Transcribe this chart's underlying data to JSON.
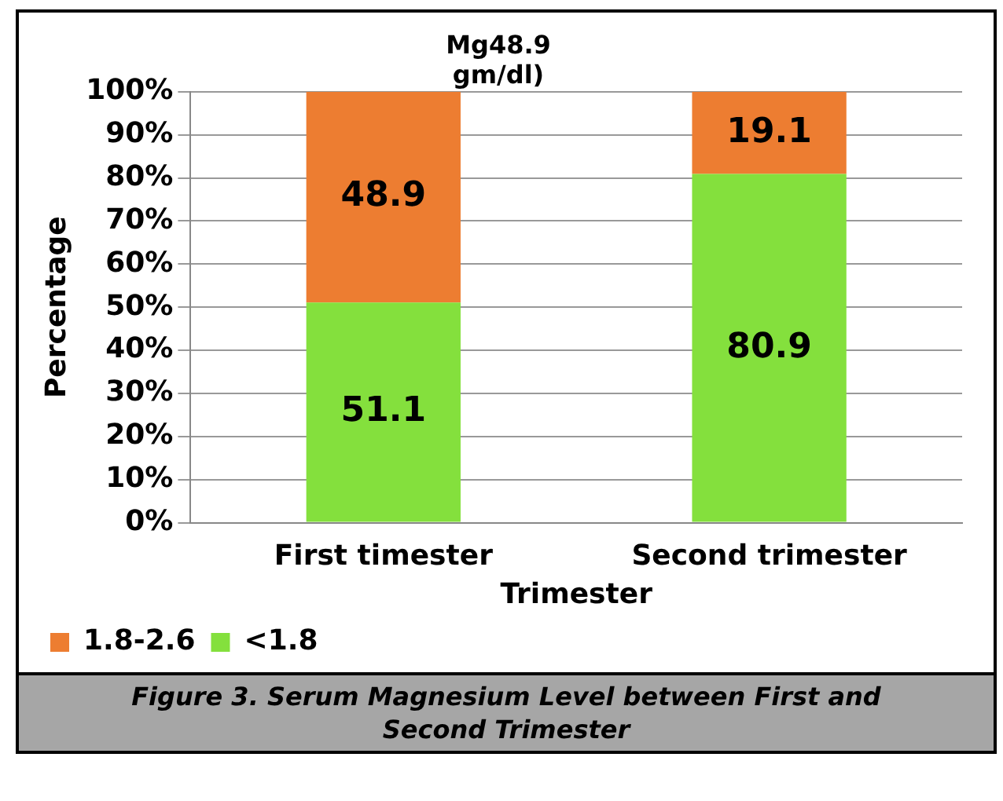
{
  "chart_data": {
    "type": "bar",
    "stacked": true,
    "title": "Mg48.9 gm/dl)",
    "xlabel": "Trimester",
    "ylabel": "Percentage",
    "categories": [
      "First timester",
      "Second trimester"
    ],
    "series": [
      {
        "name": "<1.8",
        "color": "#84e03d",
        "values": [
          51.1,
          80.9
        ]
      },
      {
        "name": "1.8-2.6",
        "color": "#ed7d31",
        "values": [
          48.9,
          19.1
        ]
      }
    ],
    "ylim": [
      0,
      100
    ],
    "yticks": [
      {
        "value": 0,
        "label": "0%"
      },
      {
        "value": 10,
        "label": "10%"
      },
      {
        "value": 20,
        "label": "20%"
      },
      {
        "value": 30,
        "label": "30%"
      },
      {
        "value": 40,
        "label": "40%"
      },
      {
        "value": 50,
        "label": "50%"
      },
      {
        "value": 60,
        "label": "60%"
      },
      {
        "value": 70,
        "label": "70%"
      },
      {
        "value": 80,
        "label": "80%"
      },
      {
        "value": 90,
        "label": "90%"
      },
      {
        "value": 100,
        "label": "100%"
      }
    ],
    "grid": "y",
    "legend": "bottom",
    "data_labels": true,
    "annotations": [
      "Figure 3. Serum Magnesium Level between First and Second Trimester"
    ]
  }
}
